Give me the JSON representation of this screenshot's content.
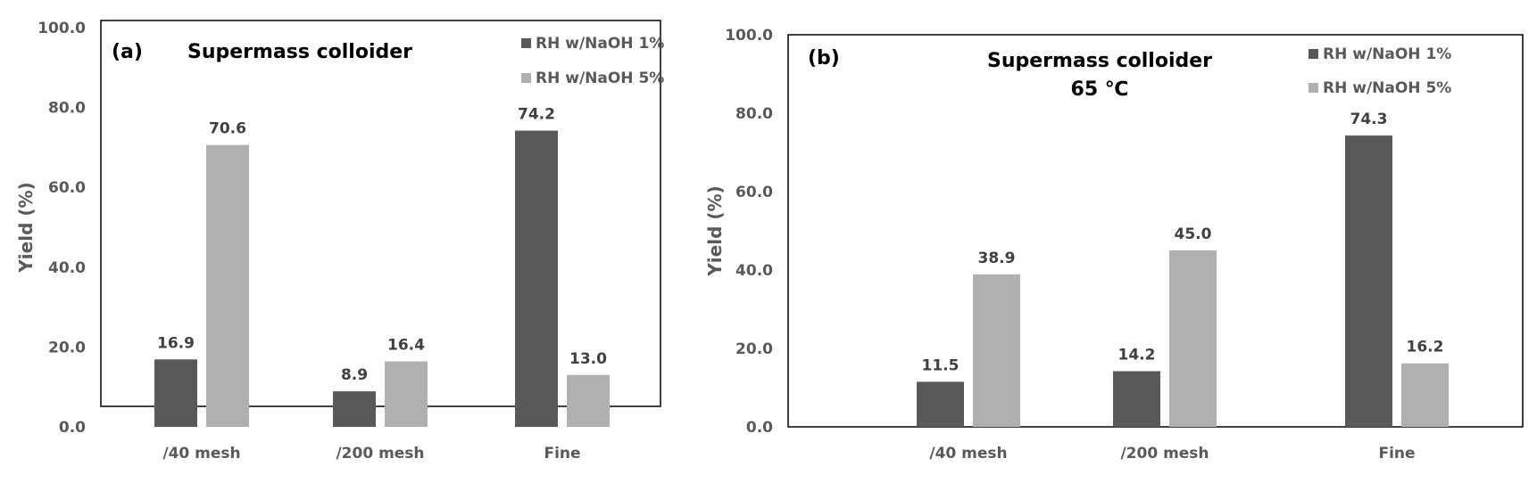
{
  "chart_data": [
    {
      "type": "bar",
      "panel_label": "(a)",
      "title": [
        "Supermass colloider"
      ],
      "xlabel": "",
      "ylabel": "Yield (%)",
      "ylim": [
        0,
        100
      ],
      "yticks": [
        "0.0",
        "20.0",
        "40.0",
        "60.0",
        "80.0",
        "100.0"
      ],
      "categories": [
        "/40 mesh",
        "/200 mesh",
        "Fine"
      ],
      "legend_position": "top-right",
      "series": [
        {
          "name": "RH w/NaOH 1%",
          "color": "#595959",
          "values": [
            16.9,
            8.9,
            74.2
          ],
          "labels": [
            "16.9",
            "8.9",
            "74.2"
          ]
        },
        {
          "name": "RH w/NaOH 5%",
          "color": "#b0b0b0",
          "values": [
            70.6,
            16.4,
            13.0
          ],
          "labels": [
            "70.6",
            "16.4",
            "13.0"
          ]
        }
      ]
    },
    {
      "type": "bar",
      "panel_label": "(b)",
      "title": [
        "Supermass colloider",
        "65 ℃"
      ],
      "xlabel": "",
      "ylabel": "Yield (%)",
      "ylim": [
        0,
        100
      ],
      "yticks": [
        "0.0",
        "20.0",
        "40.0",
        "60.0",
        "80.0",
        "100.0"
      ],
      "categories": [
        "/40 mesh",
        "/200 mesh",
        "Fine"
      ],
      "legend_position": "top-right",
      "series": [
        {
          "name": "RH w/NaOH 1%",
          "color": "#595959",
          "values": [
            11.5,
            14.2,
            74.3
          ],
          "labels": [
            "11.5",
            "14.2",
            "74.3"
          ]
        },
        {
          "name": "RH w/NaOH 5%",
          "color": "#b0b0b0",
          "values": [
            38.9,
            45.0,
            16.2
          ],
          "labels": [
            "38.9",
            "45.0",
            "16.2"
          ]
        }
      ]
    }
  ]
}
